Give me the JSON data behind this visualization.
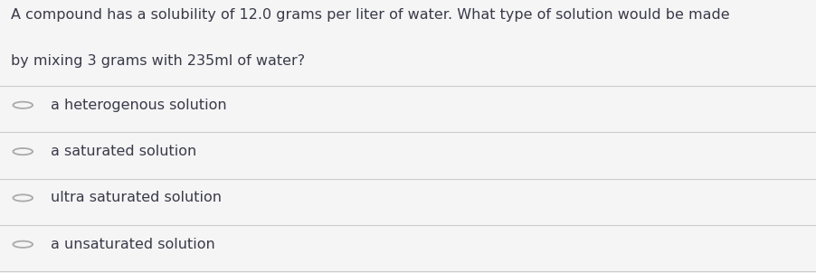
{
  "question_line1": "A compound has a solubility of 12.0 grams per liter of water. What type of solution would be made",
  "question_line2": "by mixing 3 grams with 235ml of water?",
  "options": [
    "a heterogenous solution",
    "a saturated solution",
    "ultra saturated solution",
    "a unsaturated solution"
  ],
  "background_color": "#f5f5f5",
  "text_color": "#3a3a4a",
  "line_color": "#cccccc",
  "circle_color": "#aaaaaa",
  "question_fontsize": 11.5,
  "option_fontsize": 11.5,
  "font_family": "DejaVu Sans"
}
